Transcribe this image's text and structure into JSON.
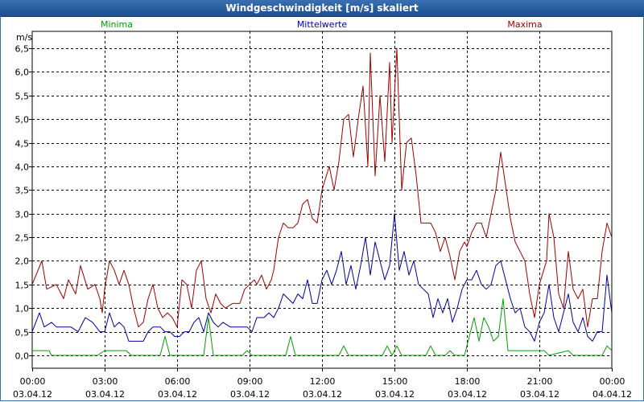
{
  "window": {
    "title": "Windgeschwindigkeit [m/s] skaliert"
  },
  "legend": [
    {
      "name": "Minima",
      "color": "#00a000"
    },
    {
      "name": "Mittelwerte",
      "color": "#0000a0"
    },
    {
      "name": "Maxima",
      "color": "#a00000"
    }
  ],
  "chart_data": {
    "type": "line",
    "title": "Windgeschwindigkeit [m/s] skaliert",
    "ylabel": "m/s",
    "xlabel": "",
    "ylim": [
      -0.2,
      6.65
    ],
    "y_ticks": [
      "6,5",
      "6,0",
      "5,5",
      "5,0",
      "4,5",
      "4,0",
      "3,5",
      "3,0",
      "2,5",
      "2,0",
      "1,5",
      "1,0",
      "0,5",
      "0,0"
    ],
    "y_tick_values": [
      6.5,
      6.0,
      5.5,
      5.0,
      4.5,
      4.0,
      3.5,
      3.0,
      2.5,
      2.0,
      1.5,
      1.0,
      0.5,
      0.0
    ],
    "x_range_hours": [
      0,
      24
    ],
    "x_tick_hours": [
      0,
      3,
      6,
      9,
      12,
      15,
      18,
      21,
      24
    ],
    "x_ticks": [
      {
        "time": "00:00",
        "date": "03.04.12"
      },
      {
        "time": "03:00",
        "date": "03.04.12"
      },
      {
        "time": "06:00",
        "date": "03.04.12"
      },
      {
        "time": "09:00",
        "date": "03.04.12"
      },
      {
        "time": "12:00",
        "date": "03.04.12"
      },
      {
        "time": "15:00",
        "date": "03.04.12"
      },
      {
        "time": "18:00",
        "date": "03.04.12"
      },
      {
        "time": "21:00",
        "date": "03.04.12"
      },
      {
        "time": "00:00",
        "date": "04.04.12"
      }
    ],
    "grid": true,
    "series": [
      {
        "name": "Maxima",
        "color": "#a00000",
        "points": [
          [
            0,
            1.5
          ],
          [
            0.4,
            2.0
          ],
          [
            0.6,
            1.4
          ],
          [
            1.0,
            1.5
          ],
          [
            1.3,
            1.2
          ],
          [
            1.5,
            1.6
          ],
          [
            1.8,
            1.3
          ],
          [
            2.0,
            1.9
          ],
          [
            2.3,
            1.4
          ],
          [
            2.6,
            1.5
          ],
          [
            2.8,
            1.2
          ],
          [
            2.9,
            0.9
          ],
          [
            3.0,
            1.4
          ],
          [
            3.2,
            2.0
          ],
          [
            3.4,
            1.8
          ],
          [
            3.6,
            1.5
          ],
          [
            3.8,
            1.8
          ],
          [
            4.0,
            1.5
          ],
          [
            4.2,
            1.0
          ],
          [
            4.4,
            0.6
          ],
          [
            4.6,
            0.7
          ],
          [
            4.8,
            1.2
          ],
          [
            5.0,
            1.5
          ],
          [
            5.2,
            1.0
          ],
          [
            5.4,
            0.8
          ],
          [
            5.6,
            0.9
          ],
          [
            5.8,
            0.8
          ],
          [
            6.0,
            0.6
          ],
          [
            6.2,
            1.6
          ],
          [
            6.4,
            1.5
          ],
          [
            6.6,
            1.0
          ],
          [
            6.8,
            1.8
          ],
          [
            7.0,
            2.0
          ],
          [
            7.2,
            1.2
          ],
          [
            7.4,
            0.9
          ],
          [
            7.6,
            1.3
          ],
          [
            7.8,
            1.1
          ],
          [
            8.0,
            1.0
          ],
          [
            8.3,
            1.1
          ],
          [
            8.6,
            1.1
          ],
          [
            8.8,
            1.4
          ],
          [
            9.0,
            1.5
          ],
          [
            9.2,
            1.6
          ],
          [
            9.3,
            1.5
          ],
          [
            9.5,
            1.7
          ],
          [
            9.7,
            1.4
          ],
          [
            9.9,
            1.6
          ],
          [
            10.0,
            1.8
          ],
          [
            10.2,
            2.5
          ],
          [
            10.4,
            2.8
          ],
          [
            10.6,
            2.7
          ],
          [
            10.8,
            2.7
          ],
          [
            11.0,
            2.8
          ],
          [
            11.2,
            3.2
          ],
          [
            11.4,
            3.3
          ],
          [
            11.6,
            2.9
          ],
          [
            11.8,
            2.8
          ],
          [
            12.0,
            3.5
          ],
          [
            12.3,
            4.0
          ],
          [
            12.5,
            3.5
          ],
          [
            12.7,
            4.1
          ],
          [
            12.9,
            5.0
          ],
          [
            13.1,
            5.1
          ],
          [
            13.3,
            4.2
          ],
          [
            13.5,
            5.0
          ],
          [
            13.7,
            5.7
          ],
          [
            13.9,
            4.0
          ],
          [
            14.0,
            6.4
          ],
          [
            14.2,
            3.8
          ],
          [
            14.4,
            5.5
          ],
          [
            14.6,
            4.1
          ],
          [
            14.8,
            6.2
          ],
          [
            14.9,
            4.5
          ],
          [
            15.1,
            6.5
          ],
          [
            15.3,
            3.5
          ],
          [
            15.5,
            4.5
          ],
          [
            15.7,
            4.6
          ],
          [
            15.9,
            3.8
          ],
          [
            16.1,
            2.8
          ],
          [
            16.3,
            2.8
          ],
          [
            16.5,
            2.8
          ],
          [
            16.7,
            2.6
          ],
          [
            16.9,
            2.2
          ],
          [
            17.1,
            2.5
          ],
          [
            17.3,
            2.1
          ],
          [
            17.5,
            1.6
          ],
          [
            17.7,
            2.2
          ],
          [
            17.9,
            2.4
          ],
          [
            18.0,
            2.3
          ],
          [
            18.2,
            2.6
          ],
          [
            18.4,
            2.8
          ],
          [
            18.6,
            2.8
          ],
          [
            18.8,
            2.5
          ],
          [
            19.0,
            3.0
          ],
          [
            19.2,
            3.5
          ],
          [
            19.4,
            4.3
          ],
          [
            19.6,
            3.6
          ],
          [
            19.8,
            2.9
          ],
          [
            20.0,
            2.4
          ],
          [
            20.2,
            2.2
          ],
          [
            20.4,
            2.0
          ],
          [
            20.6,
            1.3
          ],
          [
            20.8,
            0.8
          ],
          [
            21.0,
            1.5
          ],
          [
            21.3,
            2.0
          ],
          [
            21.4,
            3.0
          ],
          [
            21.6,
            2.5
          ],
          [
            21.8,
            1.3
          ],
          [
            22.0,
            1.0
          ],
          [
            22.2,
            2.2
          ],
          [
            22.4,
            1.4
          ],
          [
            22.6,
            1.2
          ],
          [
            22.8,
            1.4
          ],
          [
            23.0,
            0.6
          ],
          [
            23.2,
            1.2
          ],
          [
            23.4,
            1.2
          ],
          [
            23.6,
            2.2
          ],
          [
            23.8,
            2.8
          ],
          [
            24.0,
            2.5
          ]
        ]
      },
      {
        "name": "Mittelwerte",
        "color": "#0000a0",
        "points": [
          [
            0,
            0.5
          ],
          [
            0.3,
            0.9
          ],
          [
            0.5,
            0.6
          ],
          [
            0.8,
            0.7
          ],
          [
            1.0,
            0.6
          ],
          [
            1.3,
            0.6
          ],
          [
            1.6,
            0.6
          ],
          [
            1.9,
            0.5
          ],
          [
            2.2,
            0.8
          ],
          [
            2.5,
            0.7
          ],
          [
            2.8,
            0.5
          ],
          [
            3.0,
            0.5
          ],
          [
            3.2,
            0.9
          ],
          [
            3.4,
            0.6
          ],
          [
            3.6,
            0.7
          ],
          [
            3.8,
            0.6
          ],
          [
            4.0,
            0.3
          ],
          [
            4.3,
            0.3
          ],
          [
            4.6,
            0.3
          ],
          [
            4.8,
            0.5
          ],
          [
            5.0,
            0.6
          ],
          [
            5.3,
            0.6
          ],
          [
            5.5,
            0.5
          ],
          [
            5.7,
            0.5
          ],
          [
            5.9,
            0.4
          ],
          [
            6.1,
            0.4
          ],
          [
            6.3,
            0.5
          ],
          [
            6.5,
            0.5
          ],
          [
            6.7,
            0.7
          ],
          [
            6.9,
            0.8
          ],
          [
            7.1,
            0.5
          ],
          [
            7.3,
            0.9
          ],
          [
            7.5,
            0.7
          ],
          [
            7.7,
            0.6
          ],
          [
            7.9,
            0.7
          ],
          [
            8.2,
            0.6
          ],
          [
            8.6,
            0.6
          ],
          [
            8.9,
            0.6
          ],
          [
            9.1,
            0.5
          ],
          [
            9.3,
            0.8
          ],
          [
            9.6,
            0.8
          ],
          [
            9.8,
            0.9
          ],
          [
            10.0,
            0.8
          ],
          [
            10.2,
            1.0
          ],
          [
            10.4,
            1.3
          ],
          [
            10.6,
            1.2
          ],
          [
            10.8,
            1.1
          ],
          [
            11.0,
            1.3
          ],
          [
            11.2,
            1.2
          ],
          [
            11.4,
            1.6
          ],
          [
            11.6,
            1.1
          ],
          [
            11.8,
            1.1
          ],
          [
            12.0,
            1.6
          ],
          [
            12.2,
            1.8
          ],
          [
            12.4,
            1.5
          ],
          [
            12.6,
            1.8
          ],
          [
            12.8,
            2.2
          ],
          [
            13.0,
            1.5
          ],
          [
            13.2,
            1.9
          ],
          [
            13.4,
            1.4
          ],
          [
            13.6,
            1.9
          ],
          [
            13.8,
            2.5
          ],
          [
            14.0,
            1.7
          ],
          [
            14.2,
            2.4
          ],
          [
            14.4,
            2.0
          ],
          [
            14.6,
            1.6
          ],
          [
            14.8,
            1.9
          ],
          [
            15.0,
            3.0
          ],
          [
            15.2,
            1.8
          ],
          [
            15.4,
            2.2
          ],
          [
            15.6,
            1.7
          ],
          [
            15.8,
            2.0
          ],
          [
            16.0,
            1.5
          ],
          [
            16.2,
            1.4
          ],
          [
            16.4,
            1.3
          ],
          [
            16.6,
            0.8
          ],
          [
            16.8,
            1.2
          ],
          [
            17.0,
            0.9
          ],
          [
            17.2,
            1.2
          ],
          [
            17.4,
            0.7
          ],
          [
            17.6,
            1.0
          ],
          [
            17.8,
            1.4
          ],
          [
            18.0,
            1.6
          ],
          [
            18.2,
            1.6
          ],
          [
            18.4,
            1.8
          ],
          [
            18.6,
            1.5
          ],
          [
            18.8,
            1.4
          ],
          [
            19.0,
            1.5
          ],
          [
            19.2,
            1.9
          ],
          [
            19.4,
            2.0
          ],
          [
            19.6,
            1.6
          ],
          [
            19.8,
            1.2
          ],
          [
            20.0,
            0.9
          ],
          [
            20.2,
            1.0
          ],
          [
            20.4,
            0.6
          ],
          [
            20.6,
            0.5
          ],
          [
            20.8,
            0.3
          ],
          [
            21.0,
            0.7
          ],
          [
            21.2,
            0.9
          ],
          [
            21.4,
            1.5
          ],
          [
            21.6,
            0.8
          ],
          [
            21.8,
            0.5
          ],
          [
            22.0,
            0.9
          ],
          [
            22.2,
            1.3
          ],
          [
            22.4,
            0.7
          ],
          [
            22.6,
            0.5
          ],
          [
            22.8,
            0.8
          ],
          [
            23.0,
            0.4
          ],
          [
            23.2,
            0.3
          ],
          [
            23.4,
            0.5
          ],
          [
            23.6,
            0.5
          ],
          [
            23.8,
            1.7
          ],
          [
            24.0,
            0.9
          ]
        ]
      },
      {
        "name": "Minima",
        "color": "#00a000",
        "points": [
          [
            0,
            0.1
          ],
          [
            0.7,
            0.1
          ],
          [
            0.8,
            0.0
          ],
          [
            2.7,
            0.0
          ],
          [
            3.0,
            0.1
          ],
          [
            3.9,
            0.1
          ],
          [
            4.1,
            0.0
          ],
          [
            5.3,
            0.0
          ],
          [
            5.5,
            0.4
          ],
          [
            5.7,
            0.0
          ],
          [
            7.1,
            0.0
          ],
          [
            7.3,
            0.8
          ],
          [
            7.5,
            0.0
          ],
          [
            8.7,
            0.0
          ],
          [
            8.9,
            0.1
          ],
          [
            9.1,
            0.0
          ],
          [
            10.5,
            0.0
          ],
          [
            10.7,
            0.4
          ],
          [
            10.9,
            0.0
          ],
          [
            12.7,
            0.0
          ],
          [
            12.9,
            0.2
          ],
          [
            13.1,
            0.0
          ],
          [
            14.5,
            0.0
          ],
          [
            14.7,
            0.2
          ],
          [
            14.9,
            0.0
          ],
          [
            15.1,
            0.2
          ],
          [
            15.3,
            0.0
          ],
          [
            16.3,
            0.0
          ],
          [
            16.5,
            0.2
          ],
          [
            16.7,
            0.0
          ],
          [
            17.1,
            0.0
          ],
          [
            17.3,
            0.1
          ],
          [
            17.5,
            0.0
          ],
          [
            17.9,
            0.0
          ],
          [
            18.1,
            0.4
          ],
          [
            18.3,
            0.8
          ],
          [
            18.5,
            0.3
          ],
          [
            18.7,
            0.8
          ],
          [
            18.9,
            0.6
          ],
          [
            19.1,
            0.3
          ],
          [
            19.3,
            0.4
          ],
          [
            19.5,
            1.2
          ],
          [
            19.7,
            0.1
          ],
          [
            21.2,
            0.1
          ],
          [
            21.4,
            0.0
          ],
          [
            22.2,
            0.1
          ],
          [
            22.4,
            0.0
          ],
          [
            23.6,
            0.0
          ],
          [
            23.8,
            0.2
          ],
          [
            24.0,
            0.1
          ]
        ]
      }
    ]
  }
}
